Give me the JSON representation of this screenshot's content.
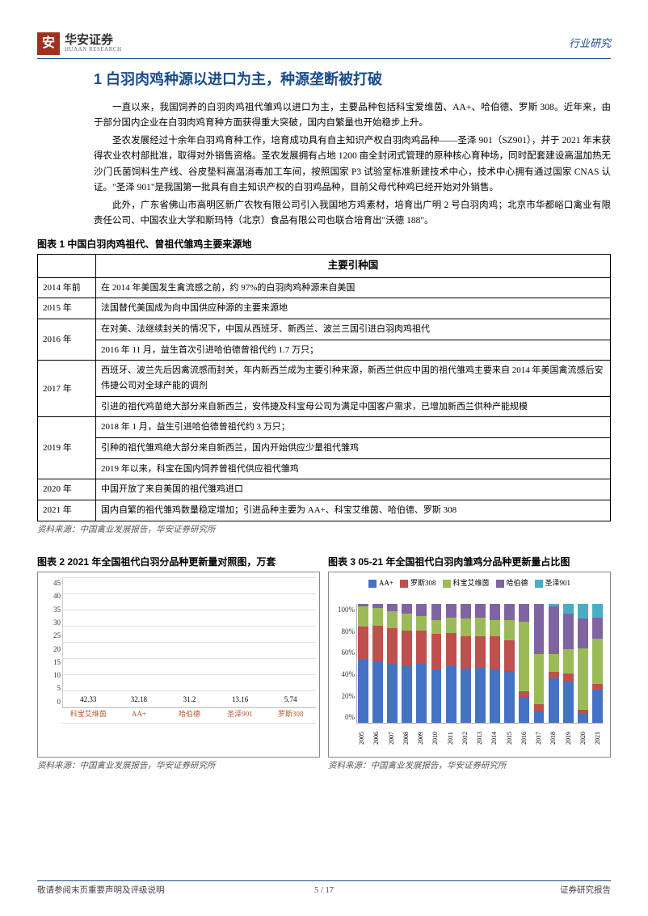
{
  "header": {
    "logo_cn": "华安证券",
    "logo_en": "HUAAN RESEARCH",
    "right": "行业研究"
  },
  "section_title": "1 白羽肉鸡种源以进口为主，种源垄断被打破",
  "paragraphs": [
    "一直以来，我国饲养的白羽肉鸡祖代雏鸡以进口为主，主要品种包括科宝爱维茵、AA+、哈伯德、罗斯 308。近年来，由于部分国内企业在白羽肉鸡育种方面获得重大突破，国内自繁量也开始稳步上升。",
    "圣农发展经过十余年白羽鸡育种工作，培育成功具有自主知识产权白羽肉鸡品种——圣泽 901（SZ901），并于 2021 年末获得农业农村部批准，取得对外销售资格。圣农发展拥有占地 1200 亩全封闭式管理的原种核心育种场，同时配套建设高温加热无沙门氏菌饲料生产线、谷皮垫料高温消毒加工车间，按照国家 P3 试验室标准新建技术中心，技术中心拥有通过国家 CNAS 认证。\"圣泽 901\"是我国第一批具有自主知识产权的白羽鸡品种，目前父母代种鸡已经开始对外销售。",
    "此外，广东省佛山市高明区新广农牧有限公司引入我国地方鸡素材，培育出广明 2 号白羽肉鸡；北京市华都峪口禽业有限责任公司、中国农业大学和斯玛特（北京）食品有限公司也联合培育出\"沃德 188\"。"
  ],
  "table1": {
    "caption": "图表 1 中国白羽肉鸡祖代、曾祖代雏鸡主要来源地",
    "header": "主要引种国",
    "rows": [
      {
        "year": "2014 年前",
        "cells": [
          "在 2014 年美国发生禽流感之前，约 97%的白羽肉鸡种源来自美国"
        ]
      },
      {
        "year": "2015 年",
        "cells": [
          "法国替代美国成为向中国供应种源的主要来源地"
        ]
      },
      {
        "year": "2016 年",
        "cells": [
          "在对美、法继续封关的情况下，中国从西班牙、新西兰、波兰三国引进白羽肉鸡祖代",
          "2016 年 11 月，益生首次引进哈伯德曾祖代约 1.7 万只；"
        ]
      },
      {
        "year": "2017 年",
        "cells": [
          "西班牙、波兰先后因禽流感而封关，年内新西兰成为主要引种来源，新西兰供应中国的祖代雏鸡主要来自 2014 年美国禽流感后安伟捷公司对全球产能的调剂",
          "引进的祖代鸡苗绝大部分来自新西兰，安伟捷及科宝母公司为满足中国客户需求，已增加新西兰供种产能规模"
        ]
      },
      {
        "year": "2019 年",
        "cells": [
          "2018 年 1 月，益生引进哈伯德曾祖代约 3 万只；",
          "引种的祖代雏鸡绝大部分来自新西兰，国内开始供应少量祖代雏鸡",
          "2019 年以来，科宝在国内饲养曾祖代供应祖代雏鸡"
        ]
      },
      {
        "year": "2020 年",
        "cells": [
          "中国开放了来自美国的祖代雏鸡进口"
        ]
      },
      {
        "year": "2021 年",
        "cells": [
          "国内自繁的祖代雏鸡数量稳定增加；引进品种主要为 AA+、科宝艾维茵、哈伯德、罗斯 308"
        ]
      }
    ],
    "source": "资料来源：中国禽业发展报告，华安证券研究所"
  },
  "chart2": {
    "caption": "图表 2 2021 年全国祖代白羽分品种更新量对照图，万套",
    "type": "bar",
    "ylim": [
      0,
      45
    ],
    "ytick_step": 5,
    "bar_color": "#4472c4",
    "grid_color": "#e0e0e0",
    "label_color": "#b85c2c",
    "categories": [
      "科宝艾维茵",
      "AA+",
      "哈伯德",
      "圣泽901",
      "罗斯308"
    ],
    "values": [
      42.33,
      32.18,
      31.2,
      13.16,
      5.74
    ],
    "source": "资料来源：中国禽业发展报告，华安证券研究所"
  },
  "chart3": {
    "caption": "图表 3 05-21 年全国祖代白羽肉雏鸡分品种更新量占比图",
    "type": "stacked-bar",
    "ylim": [
      0,
      100
    ],
    "ytick_step": 20,
    "series": [
      {
        "name": "AA+",
        "color": "#4472c4"
      },
      {
        "name": "罗斯308",
        "color": "#c0504d"
      },
      {
        "name": "科宝艾维茵",
        "color": "#9bbb59"
      },
      {
        "name": "哈伯德",
        "color": "#8064a2"
      },
      {
        "name": "圣泽901",
        "color": "#4bacc6"
      }
    ],
    "years": [
      "2005",
      "2006",
      "2007",
      "2008",
      "2009",
      "2010",
      "2011",
      "2012",
      "2013",
      "2014",
      "2015",
      "2016",
      "2017",
      "2018",
      "2019",
      "2020",
      "2021"
    ],
    "data": [
      [
        53,
        28,
        17,
        2,
        0
      ],
      [
        52,
        30,
        15,
        3,
        0
      ],
      [
        50,
        30,
        14,
        6,
        0
      ],
      [
        48,
        30,
        14,
        8,
        0
      ],
      [
        50,
        28,
        12,
        10,
        0
      ],
      [
        45,
        30,
        12,
        13,
        0
      ],
      [
        48,
        28,
        13,
        11,
        0
      ],
      [
        46,
        27,
        15,
        12,
        0
      ],
      [
        47,
        26,
        16,
        11,
        0
      ],
      [
        45,
        28,
        14,
        13,
        0
      ],
      [
        44,
        26,
        17,
        13,
        0
      ],
      [
        22,
        5,
        58,
        15,
        0
      ],
      [
        10,
        6,
        42,
        42,
        0
      ],
      [
        38,
        5,
        15,
        40,
        2
      ],
      [
        35,
        7,
        20,
        30,
        8
      ],
      [
        8,
        3,
        52,
        25,
        12
      ],
      [
        28,
        5,
        38,
        18,
        11
      ]
    ],
    "source": "资料来源：中国禽业发展报告，华安证券研究所"
  },
  "footer": {
    "left": "敬请参阅末页重要声明及评级说明",
    "page": "5 / 17",
    "right": "证券研究报告"
  }
}
